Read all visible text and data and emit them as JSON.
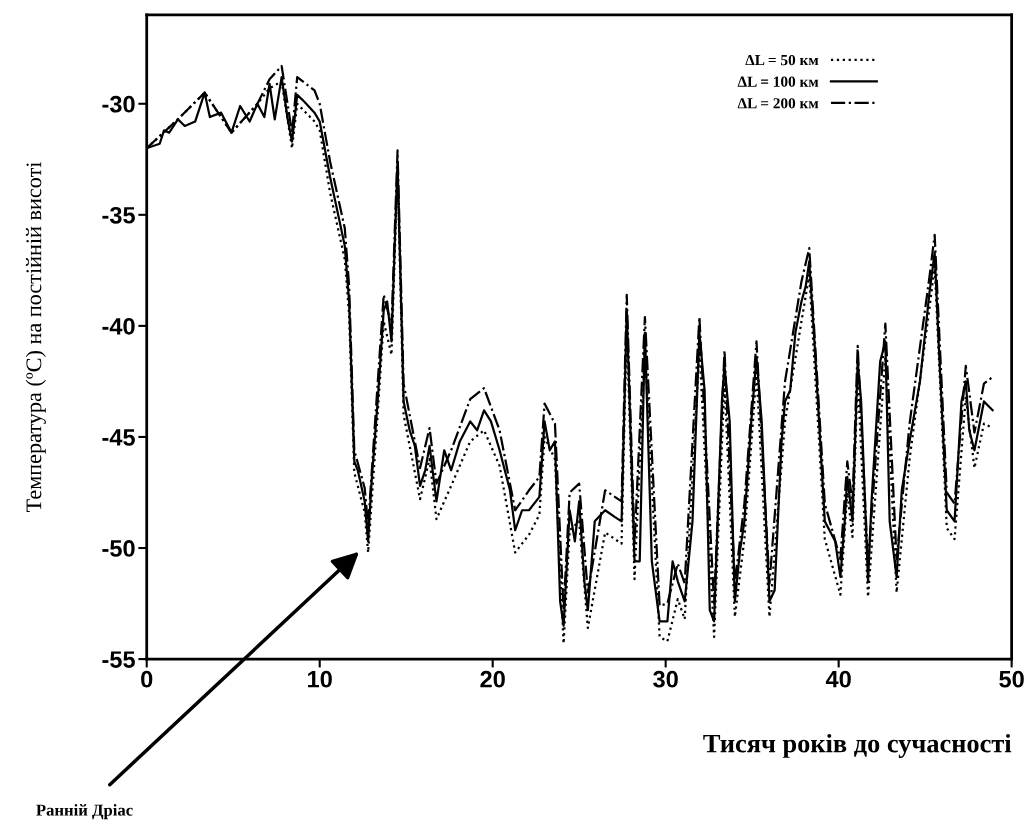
{
  "chart_data": {
    "type": "line",
    "xlabel": "Тисяч років до сучасності",
    "ylabel": "Температура (ºC) на постійній висоті",
    "xlim": [
      0,
      50
    ],
    "ylim": [
      -55,
      -26
    ],
    "xticks": [
      0,
      10,
      20,
      30,
      40,
      50
    ],
    "yticks": [
      -55,
      -50,
      -45,
      -40,
      -35,
      -30
    ],
    "grid": false,
    "legend": "top right",
    "annotations": [
      "Ранній Дріас"
    ],
    "series": [
      {
        "name": "ΔL = 50 км",
        "color": "#000000",
        "line_style": "dotted",
        "x": [
          0,
          1.8,
          3.35,
          4.9,
          6.4,
          7.1,
          7.8,
          8.4,
          8.7,
          9.7,
          10.0,
          10.6,
          11.45,
          11.7,
          12.0,
          12.6,
          12.8,
          13.35,
          13.7,
          14.15,
          14.5,
          14.85,
          15.8,
          16.35,
          16.75,
          17.6,
          18.7,
          19.5,
          20.4,
          21.3,
          22.1,
          22.7,
          23.0,
          23.6,
          24.1,
          24.45,
          25.0,
          25.5,
          26.5,
          27.45,
          27.75,
          28.2,
          28.8,
          29.65,
          30.1,
          30.7,
          31.1,
          31.95,
          32.8,
          33.4,
          34.0,
          34.55,
          35.25,
          36.0,
          36.9,
          37.85,
          38.3,
          39.2,
          40.1,
          40.5,
          40.8,
          41.1,
          41.7,
          42.7,
          43.35,
          44.1,
          45.25,
          45.55,
          46.25,
          46.7,
          47.35,
          47.85,
          48.4,
          48.9
        ],
        "values": [
          -32.0,
          -30.7,
          -29.5,
          -31.3,
          -30.0,
          -29.3,
          -29.0,
          -32.0,
          -30.0,
          -30.8,
          -31.2,
          -34.0,
          -37.0,
          -39.5,
          -46.6,
          -48.4,
          -50.2,
          -44.0,
          -39.8,
          -41.3,
          -33.0,
          -44.0,
          -47.8,
          -46.0,
          -48.7,
          -47.2,
          -45.2,
          -44.7,
          -46.3,
          -50.2,
          -49.4,
          -48.5,
          -45.0,
          -46.0,
          -54.3,
          -49.2,
          -48.8,
          -53.6,
          -49.3,
          -49.8,
          -40.0,
          -51.4,
          -41.0,
          -54.0,
          -54.2,
          -52.3,
          -53.2,
          -41.0,
          -54.0,
          -42.5,
          -53.1,
          -49.6,
          -42.1,
          -53.1,
          -44.3,
          -39.8,
          -37.7,
          -49.6,
          -52.1,
          -47.5,
          -49.5,
          -42.3,
          -52.2,
          -41.4,
          -52.0,
          -46.0,
          -39.2,
          -37.3,
          -49.1,
          -49.6,
          -43.2,
          -46.4,
          -44.4,
          -44.6
        ]
      },
      {
        "name": "ΔL = 100 км",
        "color": "#000000",
        "line_style": "solid",
        "x": [
          0,
          0.75,
          1.0,
          1.3,
          1.8,
          2.2,
          2.8,
          3.35,
          3.65,
          4.3,
          4.9,
          5.4,
          5.95,
          6.4,
          6.8,
          7.1,
          7.4,
          7.8,
          8.15,
          8.4,
          8.7,
          9.1,
          9.7,
          10.0,
          10.6,
          11.15,
          11.45,
          11.7,
          12.0,
          12.2,
          12.4,
          12.6,
          12.8,
          13.0,
          13.35,
          13.7,
          13.9,
          14.15,
          14.5,
          14.85,
          15.2,
          15.5,
          15.8,
          16.1,
          16.35,
          16.75,
          17.2,
          17.6,
          18.1,
          18.7,
          19.1,
          19.5,
          19.9,
          20.4,
          21.0,
          21.3,
          21.7,
          22.1,
          22.7,
          23.0,
          23.3,
          23.6,
          23.9,
          24.1,
          24.45,
          24.75,
          25.0,
          25.3,
          25.5,
          25.9,
          26.5,
          27.05,
          27.45,
          27.75,
          28.2,
          28.5,
          28.8,
          29.2,
          29.65,
          30.1,
          30.4,
          30.7,
          31.1,
          31.55,
          31.95,
          32.25,
          32.55,
          32.8,
          33.25,
          33.4,
          33.7,
          34.0,
          34.3,
          34.55,
          34.95,
          35.25,
          35.55,
          36.0,
          36.3,
          36.7,
          36.9,
          37.2,
          37.5,
          37.85,
          38.1,
          38.3,
          38.6,
          39.2,
          39.8,
          40.1,
          40.35,
          40.5,
          40.8,
          41.1,
          41.3,
          41.7,
          41.9,
          42.4,
          42.7,
          42.95,
          43.35,
          43.65,
          44.1,
          44.7,
          45.25,
          45.55,
          45.8,
          46.25,
          46.7,
          47.1,
          47.35,
          47.55,
          47.85,
          48.4,
          48.9
        ],
        "values": [
          -32.0,
          -31.8,
          -31.2,
          -31.3,
          -30.7,
          -31.0,
          -30.8,
          -29.5,
          -30.6,
          -30.4,
          -31.3,
          -30.1,
          -30.8,
          -30.0,
          -30.6,
          -29.1,
          -30.7,
          -28.8,
          -30.7,
          -31.7,
          -29.6,
          -29.9,
          -30.4,
          -30.8,
          -33.3,
          -35.3,
          -36.4,
          -38.9,
          -46.1,
          -46.5,
          -47.2,
          -47.9,
          -49.7,
          -47.0,
          -43.4,
          -39.3,
          -38.9,
          -40.7,
          -32.6,
          -43.4,
          -44.7,
          -45.4,
          -47.2,
          -46.5,
          -45.4,
          -47.9,
          -45.6,
          -46.5,
          -45.2,
          -44.3,
          -44.7,
          -43.8,
          -44.3,
          -45.6,
          -47.4,
          -49.2,
          -48.3,
          -48.3,
          -47.7,
          -44.3,
          -45.6,
          -45.2,
          -52.4,
          -53.5,
          -48.3,
          -49.7,
          -47.9,
          -51.5,
          -52.8,
          -48.8,
          -48.3,
          -48.6,
          -48.8,
          -39.3,
          -50.6,
          -50.6,
          -40.3,
          -50.6,
          -53.3,
          -53.3,
          -50.6,
          -51.5,
          -52.4,
          -48.8,
          -40.3,
          -42.9,
          -52.8,
          -53.3,
          -43.4,
          -41.8,
          -44.3,
          -52.4,
          -50.1,
          -48.8,
          -44.3,
          -41.4,
          -44.3,
          -52.4,
          -51.9,
          -45.2,
          -43.4,
          -42.9,
          -40.3,
          -38.9,
          -38.2,
          -37.1,
          -40.7,
          -48.8,
          -49.7,
          -51.3,
          -48.8,
          -46.8,
          -48.8,
          -41.6,
          -43.4,
          -51.5,
          -47.9,
          -41.6,
          -40.7,
          -48.8,
          -51.3,
          -47.4,
          -45.2,
          -42.5,
          -38.5,
          -36.7,
          -41.1,
          -48.3,
          -48.8,
          -43.4,
          -42.5,
          -44.7,
          -45.6,
          -43.4,
          -43.8
        ]
      },
      {
        "name": "ΔL = 200 км",
        "color": "#000000",
        "line_style": "dashdot",
        "x": [
          0,
          1.8,
          3.35,
          4.9,
          6.4,
          7.1,
          7.8,
          8.4,
          8.7,
          9.7,
          10.0,
          10.6,
          11.45,
          11.7,
          12.0,
          12.6,
          12.8,
          13.35,
          13.7,
          14.15,
          14.5,
          14.85,
          15.8,
          16.35,
          16.75,
          17.6,
          18.7,
          19.5,
          20.4,
          21.3,
          22.1,
          22.7,
          23.0,
          23.6,
          24.1,
          24.45,
          25.0,
          25.5,
          26.5,
          27.45,
          27.75,
          28.2,
          28.8,
          29.65,
          30.1,
          30.7,
          31.1,
          31.95,
          32.8,
          33.4,
          34.0,
          34.55,
          35.25,
          36.0,
          36.9,
          37.85,
          38.3,
          39.2,
          40.1,
          40.5,
          40.8,
          41.1,
          41.7,
          42.7,
          43.35,
          44.1,
          45.25,
          45.55,
          46.25,
          46.7,
          47.35,
          47.85,
          48.4,
          48.9
        ],
        "values": [
          -32.0,
          -30.7,
          -29.5,
          -31.3,
          -30.0,
          -28.9,
          -28.3,
          -31.3,
          -28.8,
          -29.4,
          -30.0,
          -32.6,
          -35.6,
          -38.2,
          -45.6,
          -47.3,
          -49.0,
          -42.6,
          -38.6,
          -40.0,
          -32.1,
          -42.6,
          -46.4,
          -44.6,
          -47.1,
          -45.6,
          -43.3,
          -42.8,
          -44.7,
          -48.3,
          -47.4,
          -46.8,
          -43.5,
          -44.4,
          -52.8,
          -47.5,
          -47.1,
          -52.0,
          -47.4,
          -47.9,
          -38.6,
          -49.8,
          -39.6,
          -52.6,
          -52.5,
          -50.7,
          -51.6,
          -39.6,
          -52.5,
          -41.1,
          -51.6,
          -48.0,
          -40.7,
          -51.6,
          -42.5,
          -38.0,
          -36.5,
          -48.0,
          -50.5,
          -46.1,
          -48.0,
          -40.9,
          -50.7,
          -39.9,
          -50.5,
          -44.4,
          -37.8,
          -35.9,
          -47.5,
          -48.0,
          -41.8,
          -44.8,
          -42.6,
          -42.3
        ]
      }
    ]
  }
}
